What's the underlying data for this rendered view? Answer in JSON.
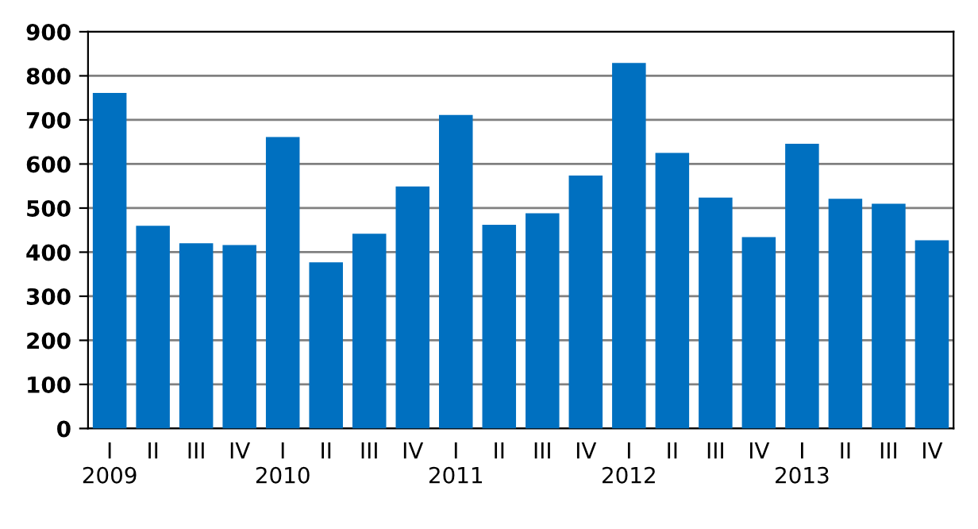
{
  "chart_data": {
    "type": "bar",
    "categories": [
      "I\n2009",
      "II",
      "III",
      "IV",
      "I\n2010",
      "II",
      "III",
      "IV",
      "I\n2011",
      "II",
      "III",
      "IV",
      "I\n2012",
      "II",
      "III",
      "IV",
      "I\n2013",
      "II",
      "III",
      "IV"
    ],
    "values": [
      761,
      460,
      420,
      416,
      661,
      377,
      442,
      549,
      711,
      462,
      488,
      574,
      829,
      625,
      524,
      434,
      646,
      521,
      510,
      427
    ],
    "color": "#0070c0",
    "ylim": [
      0,
      900
    ],
    "yticks": [
      0,
      100,
      200,
      300,
      400,
      500,
      600,
      700,
      800,
      900
    ],
    "grid": "y"
  }
}
